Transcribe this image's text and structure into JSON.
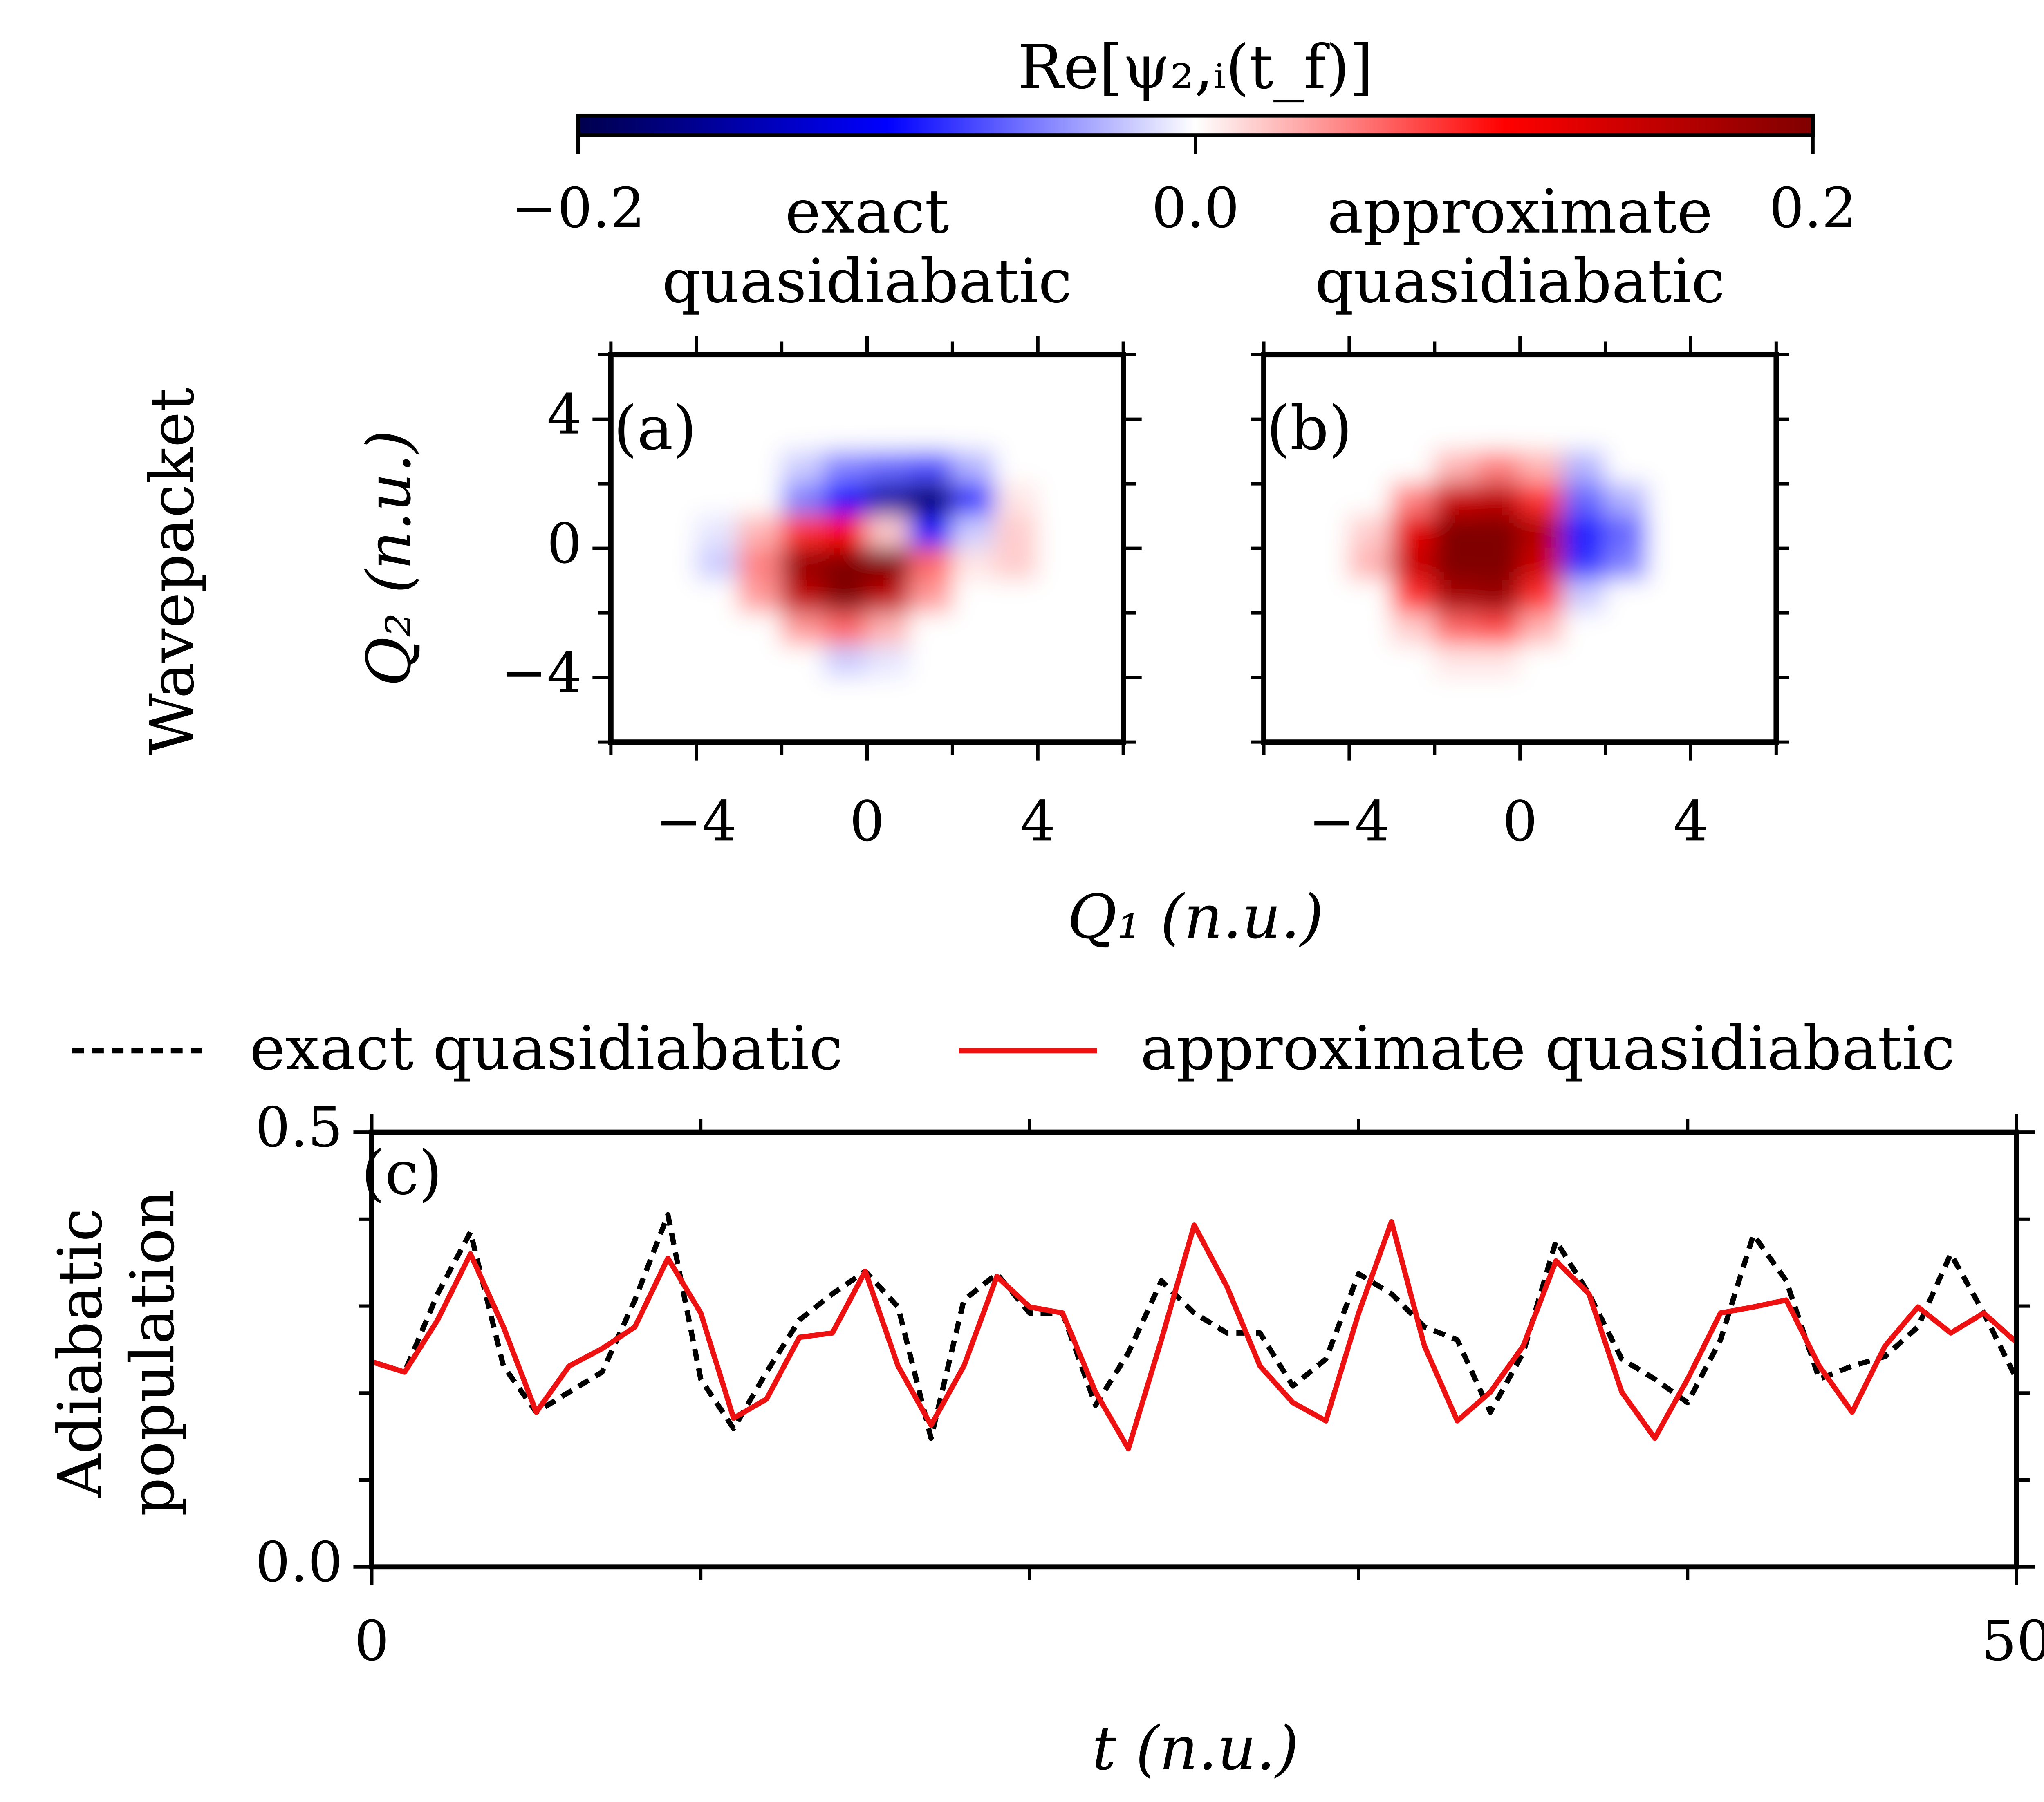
{
  "colorbar": {
    "label": "Re[ψ₂,ᵢ(t_f)]",
    "lim": [
      -0.2,
      0.2
    ],
    "colormap": "seismic",
    "ticks": [
      {
        "value": -0.2,
        "label": "−0.2"
      },
      {
        "value": 0,
        "label": "0.0"
      },
      0.2
    ]
  },
  "shared_xlabel": "Q₁ (n.u.)",
  "row_label": "Wavepacket",
  "chart_data": [
    {
      "type": "heatmap",
      "title": [
        "exact",
        "quasidiabatic"
      ],
      "label": "(a)",
      "ylabel": "Q₂ (n.u.)",
      "xlim": [
        -6,
        6
      ],
      "ylim": [
        -6,
        6
      ],
      "xticks": [
        {
          "value": -4,
          "label": "−4"
        },
        0,
        4
      ],
      "minor_xticks": [
        -6,
        -2,
        2,
        6
      ],
      "yticks": [
        4,
        0,
        {
          "value": -4,
          "label": "−4"
        }
      ],
      "minor_yticks": [
        -6,
        -2,
        2,
        6
      ],
      "x": [
        -5.5,
        -4.5,
        -3.5,
        -2.5,
        -1.5,
        -0.5,
        0.5,
        1.5,
        2.5,
        3.5,
        4.5,
        5.5
      ],
      "y": [
        5.5,
        4.5,
        3.5,
        2.5,
        1.5,
        0.5,
        -0.5,
        -1.5,
        -2.5,
        -3.5,
        -4.5,
        -5.5
      ],
      "z": [
        [
          0,
          0,
          0,
          0,
          0,
          0,
          0,
          0,
          0,
          0,
          0,
          0
        ],
        [
          0,
          0,
          0,
          0,
          0,
          0,
          0,
          0,
          0,
          0,
          0,
          0
        ],
        [
          0,
          0,
          0,
          0,
          0,
          0,
          0,
          0,
          0,
          0,
          0,
          0
        ],
        [
          0,
          0,
          0,
          0,
          -0.02,
          -0.05,
          -0.06,
          -0.07,
          -0.03,
          0,
          0,
          0
        ],
        [
          0,
          0,
          0,
          0,
          -0.05,
          -0.1,
          -0.15,
          -0.18,
          -0.08,
          0.01,
          0,
          0
        ],
        [
          0,
          0,
          -0.01,
          0.03,
          0.08,
          0.1,
          0.02,
          -0.1,
          -0.02,
          0.02,
          0,
          0
        ],
        [
          0,
          0,
          -0.02,
          0.05,
          0.18,
          0.2,
          0.2,
          0.06,
          0.01,
          0.02,
          0,
          0
        ],
        [
          0,
          0,
          0,
          0.04,
          0.15,
          0.2,
          0.15,
          0.04,
          0,
          0,
          0,
          0
        ],
        [
          0,
          0,
          0,
          0,
          0.04,
          0.06,
          0.03,
          0,
          0,
          0,
          0,
          0
        ],
        [
          0,
          0,
          0,
          0,
          0,
          -0.02,
          -0.01,
          0,
          0,
          0,
          0,
          0
        ],
        [
          0,
          0,
          0,
          0,
          0,
          0,
          0,
          0,
          0,
          0,
          0,
          0
        ],
        [
          0,
          0,
          0,
          0,
          0,
          0,
          0,
          0,
          0,
          0,
          0,
          0
        ]
      ]
    },
    {
      "type": "heatmap",
      "title": [
        "approximate",
        "quasidiabatic"
      ],
      "label": "(b)",
      "xlim": [
        -6,
        6
      ],
      "ylim": [
        -6,
        6
      ],
      "xticks": [
        {
          "value": -4,
          "label": "−4"
        },
        0,
        4
      ],
      "minor_xticks": [
        -6,
        -2,
        2,
        6
      ],
      "minor_yticks": [
        -6,
        -4,
        -2,
        0,
        2,
        4,
        6
      ],
      "x": [
        -5.5,
        -4.5,
        -3.5,
        -2.5,
        -1.5,
        -0.5,
        0.5,
        1.5,
        2.5,
        3.5,
        4.5,
        5.5
      ],
      "y": [
        5.5,
        4.5,
        3.5,
        2.5,
        1.5,
        0.5,
        -0.5,
        -1.5,
        -2.5,
        -3.5,
        -4.5,
        -5.5
      ],
      "z": [
        [
          0,
          0,
          0,
          0,
          0,
          0,
          0,
          0,
          0,
          0,
          0,
          0
        ],
        [
          0,
          0,
          0,
          0,
          0,
          0,
          0,
          0,
          0,
          0,
          0,
          0
        ],
        [
          0,
          0,
          0,
          0,
          0,
          0,
          0,
          0,
          0,
          0,
          0,
          0
        ],
        [
          0,
          0,
          0,
          0,
          0.03,
          0.05,
          0.03,
          -0.03,
          0,
          0,
          0,
          0
        ],
        [
          0,
          0,
          0,
          0.05,
          0.14,
          0.15,
          0.08,
          -0.06,
          -0.03,
          0,
          0,
          0
        ],
        [
          0,
          0,
          0.02,
          0.12,
          0.2,
          0.2,
          0.16,
          -0.09,
          -0.06,
          0,
          0,
          0
        ],
        [
          0,
          0,
          0.03,
          0.14,
          0.2,
          0.2,
          0.14,
          -0.08,
          -0.05,
          0,
          0,
          0
        ],
        [
          0,
          0,
          0,
          0.08,
          0.17,
          0.18,
          0.08,
          -0.02,
          0,
          0,
          0,
          0
        ],
        [
          0,
          0,
          0,
          0.02,
          0.06,
          0.07,
          0.03,
          0,
          0,
          0,
          0,
          0
        ],
        [
          0,
          0,
          0,
          0,
          0.01,
          0.01,
          0,
          0,
          0,
          0,
          0,
          0
        ],
        [
          0,
          0,
          0,
          0,
          0,
          0,
          0,
          0,
          0,
          0,
          0,
          0
        ],
        [
          0,
          0,
          0,
          0,
          0,
          0,
          0,
          0,
          0,
          0,
          0,
          0
        ]
      ]
    },
    {
      "type": "line",
      "label": "(c)",
      "xlabel": "t (n.u.)",
      "ylabel": [
        "Adiabatic",
        "population"
      ],
      "xlim": [
        0,
        50
      ],
      "ylim": [
        0,
        0.5
      ],
      "xticks": [
        0,
        50
      ],
      "minor_xticks": [
        10,
        20,
        30,
        40
      ],
      "yticks": [
        {
          "value": 0,
          "label": "0.0"
        },
        0.5
      ],
      "minor_yticks": [
        0.1,
        0.2,
        0.3,
        0.4
      ],
      "legend": "top",
      "x": [
        0,
        1,
        2,
        3,
        4,
        5,
        6,
        7,
        8,
        9,
        10,
        11,
        12,
        13,
        14,
        15,
        16,
        17,
        18,
        19,
        20,
        21,
        22,
        23,
        24,
        25,
        26,
        27,
        28,
        29,
        30,
        31,
        32,
        33,
        34,
        35,
        36,
        37,
        38,
        39,
        40,
        41,
        42,
        43,
        44,
        45,
        46,
        47,
        48,
        49,
        50
      ],
      "series": [
        {
          "name": "exact quasidiabatic",
          "color": "#000000",
          "linestyle": "dashed",
          "values": [
            0.236,
            0.224,
            0.314,
            0.385,
            0.231,
            0.178,
            0.201,
            0.224,
            0.307,
            0.405,
            0.216,
            0.159,
            0.224,
            0.284,
            0.314,
            0.34,
            0.299,
            0.148,
            0.307,
            0.337,
            0.292,
            0.292,
            0.186,
            0.246,
            0.329,
            0.292,
            0.269,
            0.269,
            0.208,
            0.239,
            0.337,
            0.314,
            0.276,
            0.261,
            0.178,
            0.246,
            0.375,
            0.314,
            0.239,
            0.216,
            0.189,
            0.261,
            0.382,
            0.329,
            0.216,
            0.231,
            0.242,
            0.276,
            0.36,
            0.292,
            0.216
          ]
        },
        {
          "name": "approximate quasidiabatic",
          "color": "#ee1111",
          "linestyle": "solid",
          "values": [
            0.236,
            0.224,
            0.284,
            0.36,
            0.276,
            0.178,
            0.231,
            0.251,
            0.276,
            0.355,
            0.292,
            0.171,
            0.193,
            0.264,
            0.269,
            0.34,
            0.231,
            0.163,
            0.231,
            0.334,
            0.299,
            0.292,
            0.201,
            0.136,
            0.261,
            0.393,
            0.322,
            0.231,
            0.189,
            0.168,
            0.292,
            0.397,
            0.254,
            0.168,
            0.201,
            0.254,
            0.352,
            0.314,
            0.201,
            0.148,
            0.216,
            0.292,
            0.299,
            0.307,
            0.231,
            0.178,
            0.254,
            0.299,
            0.269,
            0.292,
            0.258
          ]
        }
      ]
    }
  ]
}
